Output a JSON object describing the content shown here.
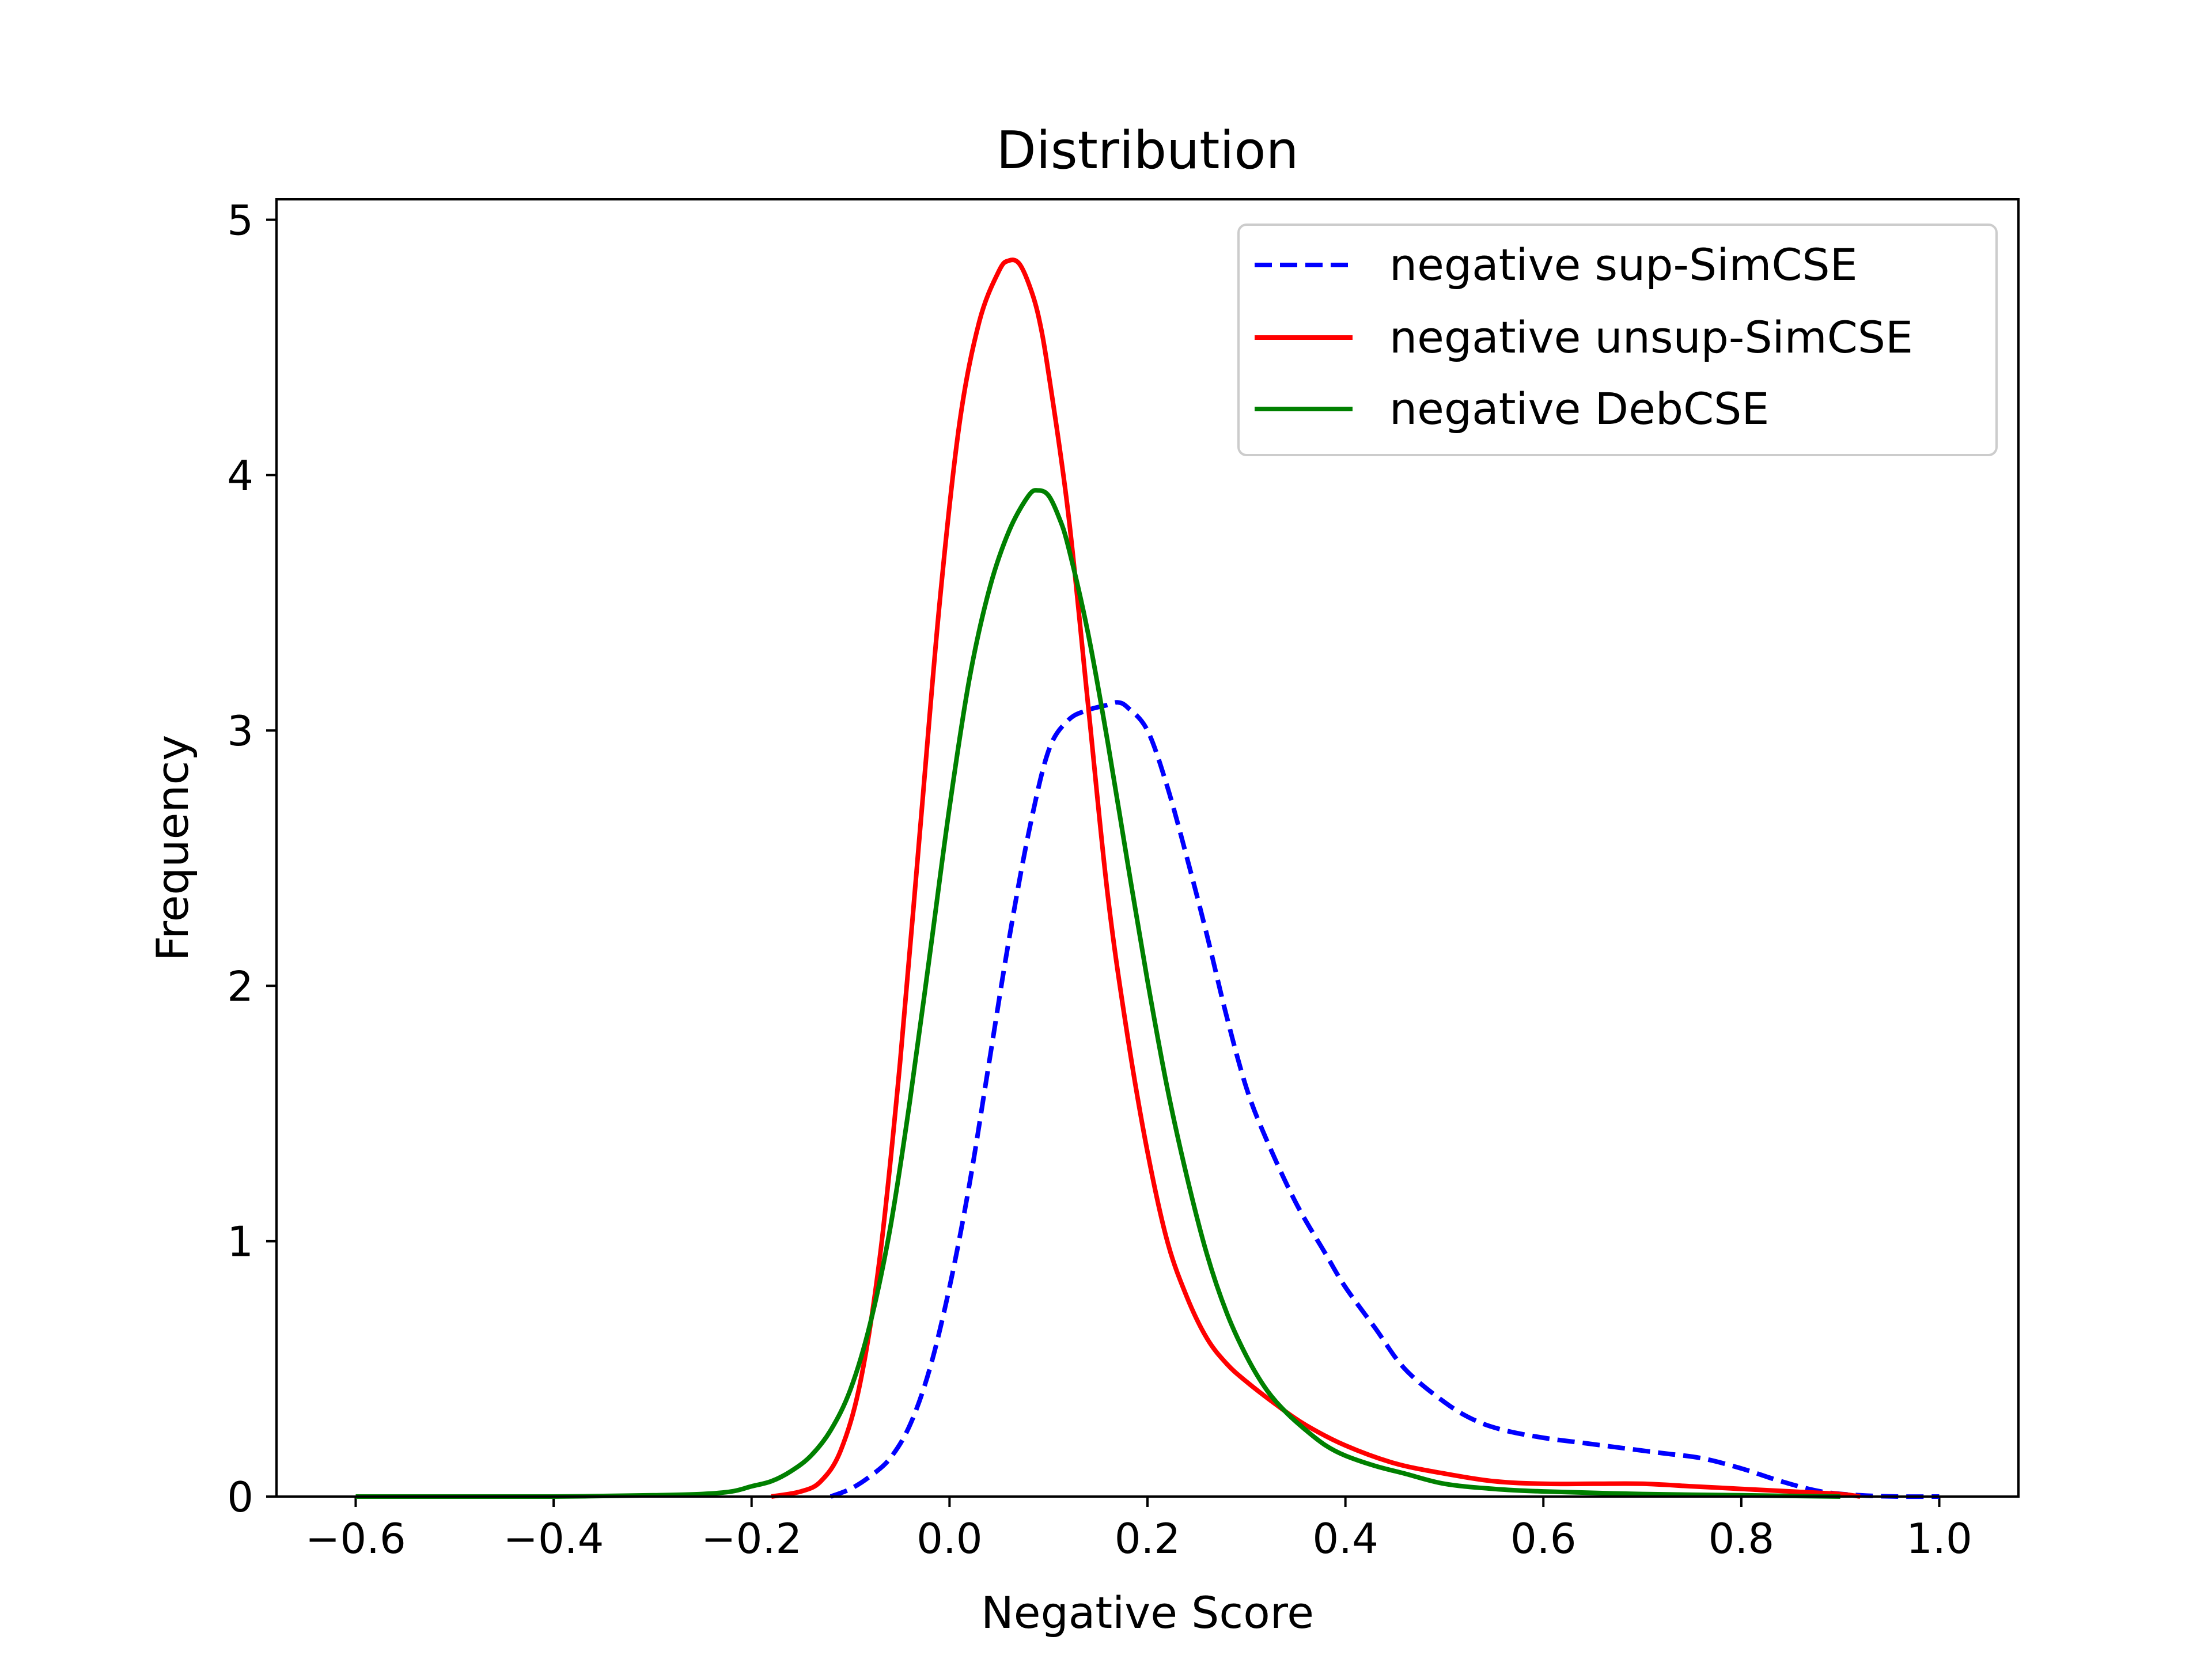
{
  "chart_data": {
    "type": "line",
    "title": "Distribution",
    "xlabel": "Negative Score",
    "ylabel": "Frequency",
    "xlim": [
      -0.68,
      1.08
    ],
    "ylim": [
      0,
      5.08
    ],
    "x_ticks": [
      -0.6,
      -0.4,
      -0.2,
      0.0,
      0.2,
      0.4,
      0.6,
      0.8,
      1.0
    ],
    "x_tick_labels": [
      "−0.6",
      "−0.4",
      "−0.2",
      "0.0",
      "0.2",
      "0.4",
      "0.6",
      "0.8",
      "1.0"
    ],
    "y_ticks": [
      0,
      1,
      2,
      3,
      4,
      5
    ],
    "y_tick_labels": [
      "0",
      "1",
      "2",
      "3",
      "4",
      "5"
    ],
    "legend_position": "top-right",
    "series": [
      {
        "name": "negative sup-SimCSE",
        "color": "#0000ff",
        "style": "dashed",
        "x": [
          -0.12,
          -0.1,
          -0.08,
          -0.06,
          -0.04,
          -0.02,
          0.0,
          0.02,
          0.04,
          0.06,
          0.08,
          0.1,
          0.12,
          0.14,
          0.16,
          0.17,
          0.18,
          0.2,
          0.22,
          0.24,
          0.26,
          0.28,
          0.3,
          0.32,
          0.35,
          0.38,
          0.4,
          0.43,
          0.46,
          0.5,
          0.53,
          0.56,
          0.6,
          0.64,
          0.68,
          0.72,
          0.76,
          0.8,
          0.84,
          0.88,
          0.92,
          0.96,
          1.0
        ],
        "y": [
          0.0,
          0.03,
          0.08,
          0.15,
          0.28,
          0.5,
          0.82,
          1.22,
          1.7,
          2.18,
          2.6,
          2.92,
          3.04,
          3.08,
          3.1,
          3.11,
          3.09,
          3.0,
          2.78,
          2.5,
          2.2,
          1.88,
          1.6,
          1.4,
          1.15,
          0.95,
          0.82,
          0.66,
          0.5,
          0.37,
          0.3,
          0.26,
          0.23,
          0.21,
          0.19,
          0.17,
          0.15,
          0.11,
          0.06,
          0.02,
          0.005,
          0.0,
          0.0
        ]
      },
      {
        "name": "negative unsup-SimCSE",
        "color": "#ff0000",
        "style": "solid",
        "x": [
          -0.18,
          -0.15,
          -0.13,
          -0.11,
          -0.09,
          -0.07,
          -0.05,
          -0.03,
          -0.01,
          0.01,
          0.03,
          0.05,
          0.06,
          0.07,
          0.08,
          0.09,
          0.1,
          0.12,
          0.14,
          0.16,
          0.18,
          0.2,
          0.22,
          0.24,
          0.26,
          0.28,
          0.3,
          0.33,
          0.36,
          0.4,
          0.45,
          0.5,
          0.55,
          0.6,
          0.65,
          0.7,
          0.75,
          0.8,
          0.85,
          0.9,
          0.92
        ],
        "y": [
          0.0,
          0.02,
          0.06,
          0.18,
          0.45,
          0.95,
          1.7,
          2.6,
          3.5,
          4.2,
          4.6,
          4.8,
          4.84,
          4.83,
          4.75,
          4.62,
          4.4,
          3.85,
          3.1,
          2.35,
          1.8,
          1.35,
          1.0,
          0.78,
          0.62,
          0.52,
          0.45,
          0.36,
          0.28,
          0.2,
          0.13,
          0.09,
          0.06,
          0.05,
          0.05,
          0.05,
          0.04,
          0.03,
          0.02,
          0.01,
          0.0
        ]
      },
      {
        "name": "negative DebCSE",
        "color": "#008000",
        "style": "solid",
        "x": [
          -0.6,
          -0.5,
          -0.4,
          -0.3,
          -0.25,
          -0.22,
          -0.2,
          -0.18,
          -0.16,
          -0.14,
          -0.12,
          -0.1,
          -0.08,
          -0.06,
          -0.04,
          -0.02,
          0.0,
          0.02,
          0.04,
          0.06,
          0.08,
          0.09,
          0.1,
          0.11,
          0.12,
          0.14,
          0.16,
          0.18,
          0.2,
          0.22,
          0.24,
          0.26,
          0.28,
          0.3,
          0.32,
          0.34,
          0.36,
          0.38,
          0.4,
          0.43,
          0.46,
          0.5,
          0.55,
          0.6,
          0.7,
          0.8,
          0.9
        ],
        "y": [
          0.0,
          0.0,
          0.0,
          0.005,
          0.01,
          0.02,
          0.04,
          0.06,
          0.1,
          0.16,
          0.26,
          0.42,
          0.68,
          1.05,
          1.55,
          2.12,
          2.7,
          3.2,
          3.55,
          3.78,
          3.92,
          3.94,
          3.92,
          3.84,
          3.72,
          3.38,
          2.95,
          2.48,
          2.02,
          1.6,
          1.25,
          0.95,
          0.72,
          0.55,
          0.42,
          0.33,
          0.26,
          0.2,
          0.16,
          0.12,
          0.09,
          0.05,
          0.03,
          0.02,
          0.01,
          0.005,
          0.0
        ]
      }
    ]
  }
}
